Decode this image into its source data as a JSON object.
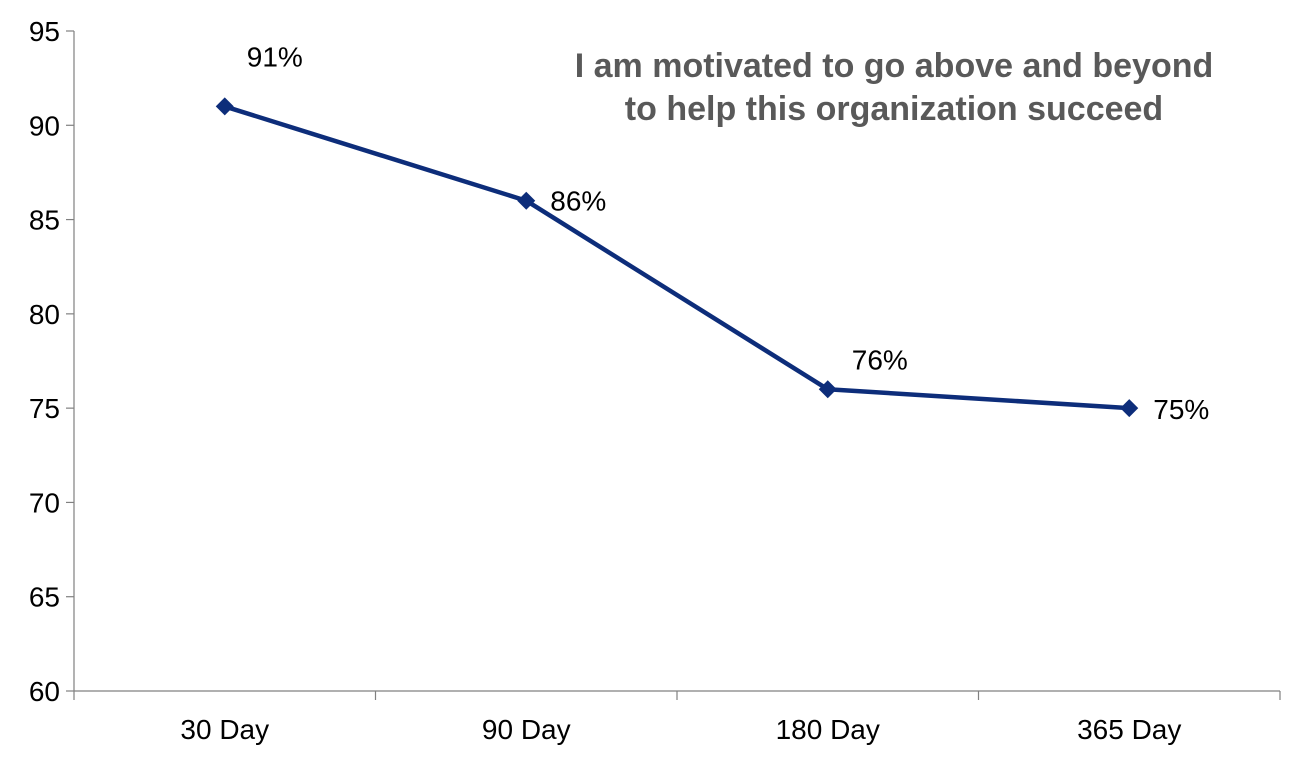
{
  "chart_data": {
    "type": "line",
    "title_lines": [
      "I am motivated to go above and beyond",
      "to help this organization succeed"
    ],
    "categories": [
      "30  Day",
      "90 Day",
      "180 Day",
      "365 Day"
    ],
    "series": [
      {
        "values": [
          91,
          86,
          76,
          75
        ],
        "labels": [
          "91%",
          "86%",
          "76%",
          "75%"
        ],
        "color": "#0D2D7A",
        "marker": "diamond"
      }
    ],
    "yticks": [
      "60",
      "65",
      "70",
      "75",
      "80",
      "85",
      "90",
      "95"
    ],
    "ylim": [
      60,
      95
    ],
    "grid": false,
    "legend": "none"
  }
}
